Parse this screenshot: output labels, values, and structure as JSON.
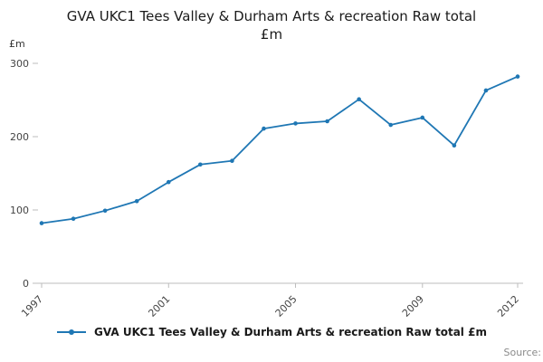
{
  "title": "GVA UKC1 Tees Valley & Durham Arts & recreation Raw total £m",
  "y_axis_unit_label": "£m",
  "source_label": "Source:",
  "legend": {
    "label": "GVA UKC1 Tees Valley & Durham Arts & recreation Raw total £m"
  },
  "colors": {
    "line": "#1f77b4",
    "axis": "#bcbcbc",
    "tick_text": "#444444"
  },
  "chart_data": {
    "type": "line",
    "title": "GVA UKC1 Tees Valley & Durham Arts & recreation Raw total £m",
    "xlabel": "",
    "ylabel": "£m",
    "x": [
      1997,
      1998,
      1999,
      2000,
      2001,
      2002,
      2003,
      2004,
      2005,
      2006,
      2007,
      2008,
      2009,
      2010,
      2011,
      2012
    ],
    "series": [
      {
        "name": "GVA UKC1 Tees Valley & Durham Arts & recreation Raw total £m",
        "values": [
          82,
          88,
          99,
          112,
          138,
          162,
          167,
          211,
          218,
          221,
          251,
          216,
          226,
          188,
          263,
          282
        ]
      }
    ],
    "ylim": [
      0,
      300
    ],
    "yticks": [
      0,
      100,
      200,
      300
    ],
    "xticks_labeled": [
      1997,
      2001,
      2005,
      2009,
      2012
    ],
    "grid": false,
    "legend_position": "bottom",
    "marker": "point"
  }
}
